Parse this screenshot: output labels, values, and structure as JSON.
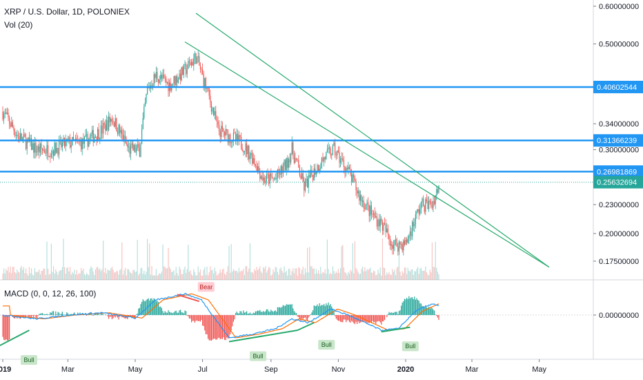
{
  "header": {
    "symbol": "XRP / U.S. Dollar, 1D, POLONIEX",
    "volume": "Vol (20)",
    "macd": "MACD (0, 0, 12, 26, 100)"
  },
  "colors": {
    "up": "#26a69a",
    "down": "#ef5350",
    "level": "#2196f3",
    "trend": "#26a96c",
    "macd": "#2196f3",
    "signal": "#ff6d00"
  },
  "chart_data": {
    "type": "candlestick",
    "symbol": "XRP / U.S. Dollar",
    "interval": "1D",
    "exchange": "POLONIEX",
    "y_scale": "log",
    "price_ticks": [
      "0.60000000",
      "0.50000000",
      "0.34000000",
      "0.30000000",
      "0.23000000",
      "0.20000000",
      "0.17500000"
    ],
    "price_tick_values": [
      0.6,
      0.5,
      0.34,
      0.3,
      0.23,
      0.2,
      0.175
    ],
    "levels": [
      {
        "label": "0.40602544",
        "value": 0.40602544
      },
      {
        "label": "0.31366239",
        "value": 0.31366239
      },
      {
        "label": "0.26981869",
        "value": 0.26981869
      }
    ],
    "last_price": {
      "label": "0.25632694",
      "value": 0.25632694
    },
    "x_labels": [
      "2019",
      "Mar",
      "May",
      "Jul",
      "Sep",
      "Nov",
      "2020",
      "Mar",
      "May"
    ],
    "trendlines": [
      {
        "from": [
          "2019-06-25",
          0.58
        ],
        "to": [
          "2020-05-10",
          0.17
        ]
      },
      {
        "from": [
          "2019-06-15",
          0.505
        ],
        "to": [
          "2020-05-10",
          0.17
        ]
      }
    ],
    "price_path": [
      [
        "2019-01-01",
        0.36
      ],
      [
        "2019-01-15",
        0.32
      ],
      [
        "2019-02-01",
        0.3
      ],
      [
        "2019-02-15",
        0.3
      ],
      [
        "2019-03-01",
        0.31
      ],
      [
        "2019-03-15",
        0.31
      ],
      [
        "2019-04-01",
        0.33
      ],
      [
        "2019-04-10",
        0.35
      ],
      [
        "2019-04-25",
        0.3
      ],
      [
        "2019-05-05",
        0.3
      ],
      [
        "2019-05-12",
        0.4
      ],
      [
        "2019-05-20",
        0.43
      ],
      [
        "2019-06-01",
        0.41
      ],
      [
        "2019-06-15",
        0.44
      ],
      [
        "2019-06-25",
        0.47
      ],
      [
        "2019-07-05",
        0.4
      ],
      [
        "2019-07-15",
        0.33
      ],
      [
        "2019-07-25",
        0.32
      ],
      [
        "2019-08-05",
        0.31
      ],
      [
        "2019-08-15",
        0.29
      ],
      [
        "2019-08-25",
        0.26
      ],
      [
        "2019-09-05",
        0.26
      ],
      [
        "2019-09-15",
        0.28
      ],
      [
        "2019-09-20",
        0.3
      ],
      [
        "2019-10-01",
        0.25
      ],
      [
        "2019-10-10",
        0.27
      ],
      [
        "2019-10-20",
        0.29
      ],
      [
        "2019-10-28",
        0.3
      ],
      [
        "2019-11-10",
        0.27
      ],
      [
        "2019-11-20",
        0.24
      ],
      [
        "2019-12-01",
        0.22
      ],
      [
        "2019-12-10",
        0.21
      ],
      [
        "2019-12-20",
        0.19
      ],
      [
        "2020-01-01",
        0.19
      ],
      [
        "2020-01-08",
        0.21
      ],
      [
        "2020-01-15",
        0.23
      ],
      [
        "2020-01-25",
        0.23
      ],
      [
        "2020-02-01",
        0.256
      ]
    ],
    "macd": {
      "zero_label": "0.00000000",
      "path": [
        [
          "2019-01-01",
          0.0
        ],
        [
          "2019-02-01",
          -0.005
        ],
        [
          "2019-03-01",
          0.0
        ],
        [
          "2019-04-01",
          0.003
        ],
        [
          "2019-05-01",
          -0.004
        ],
        [
          "2019-05-20",
          0.02
        ],
        [
          "2019-06-15",
          0.028
        ],
        [
          "2019-06-30",
          0.02
        ],
        [
          "2019-07-15",
          -0.01
        ],
        [
          "2019-07-25",
          -0.03
        ],
        [
          "2019-08-15",
          -0.025
        ],
        [
          "2019-09-05",
          -0.018
        ],
        [
          "2019-09-20",
          -0.005
        ],
        [
          "2019-10-05",
          -0.01
        ],
        [
          "2019-10-25",
          0.008
        ],
        [
          "2019-11-10",
          0.0
        ],
        [
          "2019-11-25",
          -0.01
        ],
        [
          "2019-12-10",
          -0.02
        ],
        [
          "2019-12-25",
          -0.018
        ],
        [
          "2020-01-10",
          0.005
        ],
        [
          "2020-01-25",
          0.015
        ],
        [
          "2020-02-01",
          0.012
        ]
      ]
    },
    "divergences": [
      {
        "label": "Bull",
        "from": [
          "2018-12-20",
          -0.04
        ],
        "to": [
          "2019-01-25",
          -0.02
        ],
        "type": "bull"
      },
      {
        "label": "Bear",
        "from": [
          "2019-06-08",
          0.027
        ],
        "to": [
          "2019-06-28",
          0.018
        ],
        "type": "bear"
      },
      {
        "label": "Bull",
        "from": [
          "2019-07-25",
          -0.035
        ],
        "to": [
          "2019-09-25",
          -0.02
        ],
        "type": "bull"
      },
      {
        "label": "Bull",
        "from": [
          "2019-09-25",
          -0.02
        ],
        "to": [
          "2019-10-10",
          -0.01
        ],
        "type": "bull"
      },
      {
        "label": "Bull",
        "from": [
          "2019-12-10",
          -0.022
        ],
        "to": [
          "2020-01-05",
          -0.016
        ],
        "type": "bull"
      }
    ]
  }
}
